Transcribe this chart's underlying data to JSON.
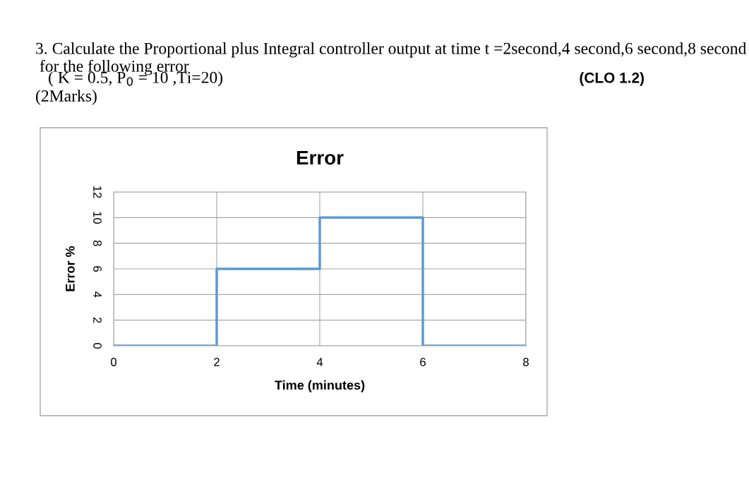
{
  "chart_data": {
    "type": "step",
    "title": "Error",
    "xlabel": "Time (minutes)",
    "ylabel": "Error %",
    "x": [
      0,
      2,
      4,
      6,
      8
    ],
    "series": [
      {
        "color": "#5b9bd5",
        "values": [
          0,
          6,
          10,
          0,
          0
        ]
      }
    ],
    "xlim": [
      0,
      8
    ],
    "xticks": [
      0,
      2,
      4,
      6,
      8
    ],
    "ylim": [
      0,
      12
    ],
    "yticks": [
      0,
      2,
      4,
      6,
      8,
      10,
      12
    ],
    "grid": true,
    "annotations": [
      "3. Calculate the Proportional plus Integral controller output at time t =2second,4 second,6 second,8 second  for the following error",
      "(CLO 1.2)",
      "( K = 0.5, P$_{0}$ = 10 ,Ti=20)",
      "(2Marks)"
    ]
  }
}
